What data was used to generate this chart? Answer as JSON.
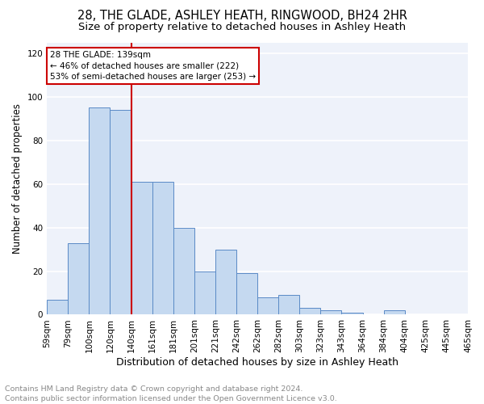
{
  "title1": "28, THE GLADE, ASHLEY HEATH, RINGWOOD, BH24 2HR",
  "title2": "Size of property relative to detached houses in Ashley Heath",
  "xlabel": "Distribution of detached houses by size in Ashley Heath",
  "ylabel": "Number of detached properties",
  "footnote1": "Contains HM Land Registry data © Crown copyright and database right 2024.",
  "footnote2": "Contains public sector information licensed under the Open Government Licence v3.0.",
  "bin_labels": [
    "59sqm",
    "79sqm",
    "100sqm",
    "120sqm",
    "140sqm",
    "161sqm",
    "181sqm",
    "201sqm",
    "221sqm",
    "242sqm",
    "262sqm",
    "282sqm",
    "303sqm",
    "323sqm",
    "343sqm",
    "364sqm",
    "384sqm",
    "404sqm",
    "425sqm",
    "445sqm",
    "465sqm"
  ],
  "bar_values": [
    7,
    33,
    95,
    94,
    61,
    61,
    40,
    20,
    30,
    19,
    8,
    9,
    3,
    2,
    1,
    0,
    2,
    0,
    0,
    0
  ],
  "bar_color": "#c5d9f0",
  "bar_edge_color": "#5a8ac6",
  "vline_x": 4,
  "vline_color": "#cc0000",
  "annotation_text": "28 THE GLADE: 139sqm\n← 46% of detached houses are smaller (222)\n53% of semi-detached houses are larger (253) →",
  "annotation_box_color": "#ffffff",
  "annotation_box_edge": "#cc0000",
  "ylim": [
    0,
    125
  ],
  "yticks": [
    0,
    20,
    40,
    60,
    80,
    100,
    120
  ],
  "bg_color": "#eef2fa",
  "grid_color": "#ffffff",
  "title1_fontsize": 10.5,
  "title2_fontsize": 9.5,
  "xlabel_fontsize": 9,
  "ylabel_fontsize": 8.5,
  "footnote_fontsize": 6.8,
  "tick_fontsize": 7.5,
  "annotation_fontsize": 7.5
}
